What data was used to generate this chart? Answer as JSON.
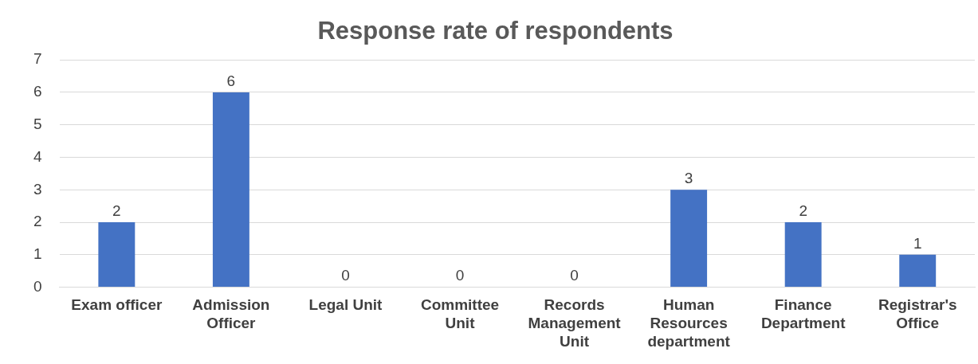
{
  "chart_data": {
    "type": "bar",
    "title": "Response rate of respondents",
    "categories": [
      "Exam officer",
      "Admission Officer",
      "Legal Unit",
      "Committee Unit",
      "Records Management Unit",
      "Human Resources department",
      "Finance Department",
      "Registrar's Office"
    ],
    "values": [
      2,
      6,
      0,
      0,
      0,
      3,
      2,
      1
    ],
    "color": "#4472c4",
    "ylim": [
      0,
      7
    ],
    "yticks": [
      0,
      1,
      2,
      3,
      4,
      5,
      6,
      7
    ],
    "grid": "y",
    "data_labels": true,
    "legend": false
  }
}
